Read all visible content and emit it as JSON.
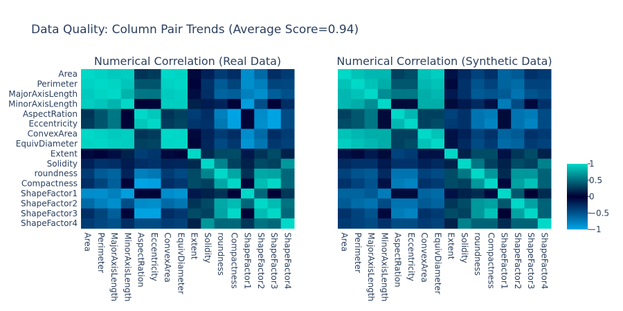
{
  "title": "Data Quality: Column Pair Trends (Average Score=0.94)",
  "chart_data": {
    "type": "heatmap",
    "title": "Data Quality: Column Pair Trends (Average Score=0.94)",
    "variables": [
      "Area",
      "Perimeter",
      "MajorAxisLength",
      "MinorAxisLength",
      "AspectRation",
      "Eccentricity",
      "ConvexArea",
      "EquivDiameter",
      "Extent",
      "Solidity",
      "roundness",
      "Compactness",
      "ShapeFactor1",
      "ShapeFactor2",
      "ShapeFactor3",
      "ShapeFactor4"
    ],
    "colorscale": [
      [
        0,
        "#00a6e6"
      ],
      [
        0.5,
        "#000033"
      ],
      [
        1,
        "#00d9c7"
      ]
    ],
    "zlim": [
      -1,
      1
    ],
    "colorbar": {
      "ticks": [
        1,
        0.5,
        0,
        -0.5,
        -1
      ],
      "tick_labels": [
        "1",
        "0.5",
        "0",
        "−0.5",
        "−1"
      ]
    },
    "panels": [
      {
        "title": "Numerical Correlation (Real Data)",
        "matrix": [
          [
            1,
            0.97,
            0.93,
            0.95,
            0.24,
            0.27,
            1,
            0.98,
            -0.05,
            -0.2,
            -0.36,
            -0.27,
            -0.85,
            -0.64,
            -0.27,
            -0.36
          ],
          [
            0.97,
            1,
            0.98,
            0.91,
            0.39,
            0.39,
            0.97,
            0.99,
            -0.02,
            -0.3,
            -0.55,
            -0.41,
            -0.86,
            -0.77,
            -0.41,
            -0.43
          ],
          [
            0.93,
            0.98,
            1,
            0.83,
            0.55,
            0.54,
            0.93,
            0.96,
            -0.08,
            -0.28,
            -0.6,
            -0.57,
            -0.77,
            -0.86,
            -0.57,
            -0.48
          ],
          [
            0.95,
            0.91,
            0.83,
            1,
            -0.01,
            0.02,
            0.95,
            0.95,
            0.15,
            -0.16,
            -0.21,
            -0.02,
            -0.95,
            -0.47,
            -0.02,
            -0.27
          ],
          [
            0.24,
            0.39,
            0.55,
            -0.01,
            1,
            0.92,
            0.24,
            0.3,
            -0.37,
            -0.27,
            -0.77,
            -0.99,
            0.02,
            -0.84,
            -0.98,
            -0.45
          ],
          [
            0.27,
            0.39,
            0.54,
            0.02,
            0.92,
            1,
            0.27,
            0.32,
            -0.32,
            -0.3,
            -0.72,
            -0.97,
            0.02,
            -0.86,
            -0.98,
            -0.45
          ],
          [
            1,
            0.97,
            0.93,
            0.95,
            0.24,
            0.27,
            1,
            0.99,
            -0.05,
            -0.21,
            -0.36,
            -0.27,
            -0.85,
            -0.64,
            -0.27,
            -0.36
          ],
          [
            0.98,
            0.99,
            0.96,
            0.95,
            0.3,
            0.32,
            0.99,
            1,
            -0.03,
            -0.23,
            -0.44,
            -0.33,
            -0.89,
            -0.71,
            -0.33,
            -0.39
          ],
          [
            -0.05,
            -0.02,
            -0.08,
            0.15,
            -0.37,
            -0.32,
            -0.05,
            -0.03,
            1,
            0.19,
            0.34,
            0.35,
            -0.14,
            0.24,
            0.35,
            0.15
          ],
          [
            -0.2,
            -0.3,
            -0.28,
            -0.16,
            -0.27,
            -0.3,
            -0.21,
            -0.23,
            0.19,
            1,
            0.61,
            0.3,
            0.15,
            0.34,
            0.3,
            0.7
          ],
          [
            -0.36,
            -0.55,
            -0.6,
            -0.21,
            -0.77,
            -0.72,
            -0.36,
            -0.44,
            0.34,
            0.61,
            1,
            0.77,
            0.23,
            0.78,
            0.76,
            0.47
          ],
          [
            -0.27,
            -0.41,
            -0.57,
            -0.02,
            -0.99,
            -0.97,
            -0.27,
            -0.33,
            0.35,
            0.3,
            0.77,
            1,
            -0.02,
            0.87,
            1,
            0.48
          ],
          [
            -0.85,
            -0.86,
            -0.77,
            -0.95,
            0.02,
            0.02,
            -0.85,
            -0.89,
            -0.14,
            0.15,
            0.23,
            -0.02,
            1,
            0.47,
            -0.01,
            0.25
          ],
          [
            -0.64,
            -0.77,
            -0.86,
            -0.47,
            -0.84,
            -0.86,
            -0.64,
            -0.71,
            0.24,
            0.34,
            0.78,
            0.87,
            0.47,
            1,
            0.87,
            0.53
          ],
          [
            -0.27,
            -0.41,
            -0.57,
            -0.02,
            -0.98,
            -0.98,
            -0.27,
            -0.33,
            0.35,
            0.3,
            0.76,
            1,
            -0.01,
            0.87,
            1,
            0.48
          ],
          [
            -0.36,
            -0.43,
            -0.48,
            -0.27,
            -0.45,
            -0.45,
            -0.36,
            -0.39,
            0.15,
            0.7,
            0.47,
            0.48,
            0.25,
            0.53,
            0.48,
            1
          ]
        ]
      },
      {
        "title": "Numerical Correlation (Synthetic Data)",
        "matrix": [
          [
            1,
            0.9,
            0.85,
            0.85,
            0.3,
            0.35,
            0.9,
            0.95,
            -0.1,
            -0.25,
            -0.4,
            -0.3,
            -0.6,
            -0.55,
            -0.3,
            -0.35
          ],
          [
            0.9,
            1,
            0.9,
            0.8,
            0.4,
            0.4,
            0.85,
            0.9,
            -0.05,
            -0.3,
            -0.5,
            -0.4,
            -0.6,
            -0.65,
            -0.4,
            -0.4
          ],
          [
            0.85,
            0.9,
            1,
            0.65,
            0.55,
            0.55,
            0.8,
            0.85,
            -0.15,
            -0.3,
            -0.55,
            -0.5,
            -0.55,
            -0.7,
            -0.5,
            -0.45
          ],
          [
            0.85,
            0.8,
            0.65,
            1,
            0.05,
            0.05,
            0.8,
            0.8,
            0.05,
            -0.15,
            -0.25,
            -0.1,
            -0.75,
            -0.45,
            -0.05,
            -0.3
          ],
          [
            0.3,
            0.4,
            0.55,
            0.05,
            1,
            0.85,
            0.3,
            0.3,
            -0.4,
            -0.3,
            -0.7,
            -0.75,
            0.05,
            -0.7,
            -0.75,
            -0.45
          ],
          [
            0.35,
            0.4,
            0.55,
            0.05,
            0.85,
            1,
            0.3,
            0.35,
            -0.35,
            -0.3,
            -0.7,
            -0.8,
            0.05,
            -0.7,
            -0.8,
            -0.45
          ],
          [
            0.9,
            0.85,
            0.8,
            0.8,
            0.3,
            0.3,
            1,
            0.9,
            -0.1,
            -0.2,
            -0.4,
            -0.3,
            -0.6,
            -0.55,
            -0.3,
            -0.35
          ],
          [
            0.95,
            0.9,
            0.85,
            0.8,
            0.3,
            0.35,
            0.9,
            1,
            -0.1,
            -0.25,
            -0.45,
            -0.35,
            -0.65,
            -0.6,
            -0.35,
            -0.4
          ],
          [
            -0.1,
            -0.05,
            -0.15,
            0.05,
            -0.4,
            -0.35,
            -0.1,
            -0.1,
            1,
            0.15,
            0.35,
            0.35,
            -0.1,
            0.25,
            0.35,
            0.15
          ],
          [
            -0.25,
            -0.3,
            -0.3,
            -0.15,
            -0.3,
            -0.3,
            -0.2,
            -0.25,
            0.15,
            1,
            0.55,
            0.3,
            0.15,
            0.35,
            0.3,
            0.6
          ],
          [
            -0.4,
            -0.5,
            -0.55,
            -0.25,
            -0.7,
            -0.7,
            -0.4,
            -0.45,
            0.35,
            0.55,
            1,
            0.7,
            0.2,
            0.7,
            0.7,
            0.45
          ],
          [
            -0.3,
            -0.4,
            -0.5,
            -0.1,
            -0.75,
            -0.8,
            -0.3,
            -0.35,
            0.35,
            0.3,
            0.7,
            1,
            -0.05,
            0.75,
            0.9,
            0.45
          ],
          [
            -0.6,
            -0.6,
            -0.55,
            -0.75,
            0.05,
            0.05,
            -0.6,
            -0.65,
            -0.1,
            0.15,
            0.2,
            -0.05,
            1,
            0.4,
            0,
            0.2
          ],
          [
            -0.55,
            -0.65,
            -0.7,
            -0.45,
            -0.7,
            -0.7,
            -0.55,
            -0.6,
            0.25,
            0.35,
            0.7,
            0.75,
            0.4,
            1,
            0.75,
            0.45
          ],
          [
            -0.3,
            -0.4,
            -0.5,
            -0.05,
            -0.75,
            -0.8,
            -0.3,
            -0.35,
            0.35,
            0.3,
            0.7,
            0.9,
            0,
            0.75,
            1,
            0.45
          ],
          [
            -0.35,
            -0.4,
            -0.45,
            -0.3,
            -0.45,
            -0.45,
            -0.35,
            -0.4,
            0.15,
            0.6,
            0.45,
            0.45,
            0.2,
            0.45,
            0.45,
            1
          ]
        ]
      }
    ]
  }
}
